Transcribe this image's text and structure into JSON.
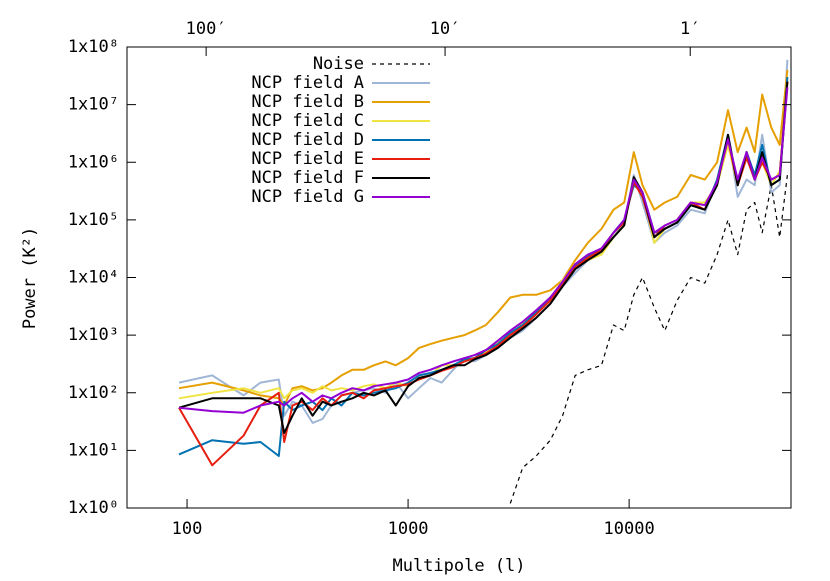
{
  "chart_data": {
    "type": "line",
    "xlabel": "Multipole (l)",
    "ylabel": "Power (K²)",
    "xscale": "log",
    "yscale": "log",
    "xlim": [
      53.5,
      54000
    ],
    "ylim": [
      1,
      100000000
    ],
    "xticks": [
      100,
      1000,
      10000
    ],
    "x2ticks": [
      {
        "value": 122,
        "label": "100′"
      },
      {
        "value": 1470,
        "label": "10′"
      },
      {
        "value": 18900,
        "label": "1′"
      }
    ],
    "yticks": [
      {
        "value": 1,
        "label": "1x10⁰"
      },
      {
        "value": 10,
        "label": "1x10¹"
      },
      {
        "value": 100,
        "label": "1x10²"
      },
      {
        "value": 1000,
        "label": "1x10³"
      },
      {
        "value": 10000,
        "label": "1x10⁴"
      },
      {
        "value": 100000,
        "label": "1x10⁵"
      },
      {
        "value": 1000000,
        "label": "1x10⁶"
      },
      {
        "value": 10000000,
        "label": "1x10⁷"
      },
      {
        "value": 100000000,
        "label": "1x10⁸"
      }
    ],
    "legend": "top-left",
    "x": [
      92,
      130,
      180,
      215,
      260,
      275,
      300,
      330,
      370,
      410,
      450,
      500,
      560,
      630,
      700,
      790,
      880,
      1000,
      1120,
      1260,
      1420,
      1600,
      1800,
      2000,
      2250,
      2550,
      2900,
      3300,
      3800,
      4400,
      5000,
      5700,
      6500,
      7500,
      8500,
      9500,
      10500,
      11500,
      13000,
      14500,
      16500,
      19000,
      22000,
      25000,
      28000,
      31000,
      34000,
      37000,
      40000,
      44000,
      48000,
      52000
    ],
    "series": [
      {
        "name": "Noise",
        "color": "#000000",
        "line_style": "dashed",
        "values": [
          null,
          null,
          null,
          null,
          null,
          null,
          null,
          null,
          null,
          null,
          null,
          null,
          null,
          null,
          null,
          null,
          null,
          null,
          null,
          null,
          null,
          null,
          null,
          null,
          null,
          null,
          1.2,
          5,
          8,
          15,
          40,
          200,
          250,
          300,
          1500,
          1200,
          5000,
          10000,
          3000,
          1200,
          4000,
          10000,
          8000,
          25000,
          100000,
          25000,
          150000,
          200000,
          60000,
          400000,
          50000,
          600000
        ]
      },
      {
        "name": "NCP field A",
        "color": "#a0b6d6",
        "line_style": "solid",
        "values": [
          150,
          200,
          90,
          150,
          170,
          40,
          70,
          60,
          30,
          35,
          60,
          90,
          100,
          110,
          120,
          100,
          150,
          80,
          120,
          180,
          150,
          250,
          400,
          350,
          450,
          700,
          900,
          1200,
          2000,
          3500,
          7000,
          12000,
          20000,
          30000,
          50000,
          90000,
          600000,
          200000,
          40000,
          60000,
          80000,
          150000,
          130000,
          500000,
          3000000,
          250000,
          500000,
          400000,
          3000000,
          300000,
          400000,
          60000000
        ]
      },
      {
        "name": "NCP field B",
        "color": "#e69f00",
        "line_style": "solid",
        "values": [
          120,
          150,
          110,
          90,
          80,
          60,
          120,
          130,
          110,
          120,
          150,
          200,
          250,
          250,
          300,
          350,
          300,
          400,
          600,
          700,
          800,
          900,
          1000,
          1200,
          1500,
          2500,
          4500,
          5000,
          5000,
          6000,
          9000,
          20000,
          40000,
          70000,
          150000,
          200000,
          1500000,
          400000,
          150000,
          200000,
          250000,
          600000,
          500000,
          1000000,
          8000000,
          1500000,
          4000000,
          1500000,
          15000000,
          4000000,
          2000000,
          40000000
        ]
      },
      {
        "name": "NCP field C",
        "color": "#f0e442",
        "line_style": "solid",
        "values": [
          80,
          100,
          120,
          100,
          120,
          80,
          110,
          120,
          100,
          130,
          110,
          120,
          110,
          130,
          140,
          120,
          150,
          130,
          180,
          200,
          300,
          300,
          350,
          400,
          500,
          750,
          1000,
          1600,
          2600,
          4000,
          9000,
          15000,
          20000,
          25000,
          50000,
          80000,
          500000,
          300000,
          40000,
          70000,
          90000,
          200000,
          200000,
          400000,
          2000000,
          400000,
          1200000,
          500000,
          1000000,
          400000,
          700000,
          20000000
        ]
      },
      {
        "name": "NCP field D",
        "color": "#0072b2",
        "line_style": "solid",
        "values": [
          8.5,
          15,
          13,
          14,
          8,
          70,
          50,
          60,
          70,
          50,
          80,
          60,
          100,
          90,
          100,
          110,
          120,
          150,
          200,
          220,
          250,
          300,
          380,
          400,
          550,
          700,
          1100,
          1500,
          2500,
          4500,
          8000,
          16000,
          24000,
          30000,
          60000,
          100000,
          400000,
          300000,
          60000,
          70000,
          90000,
          180000,
          150000,
          500000,
          3000000,
          400000,
          1500000,
          600000,
          2000000,
          400000,
          500000,
          30000000
        ]
      },
      {
        "name": "NCP field E",
        "color": "#e51e10",
        "line_style": "solid",
        "values": [
          55,
          5.5,
          18,
          60,
          100,
          14,
          60,
          70,
          50,
          80,
          60,
          90,
          100,
          80,
          110,
          120,
          130,
          140,
          170,
          200,
          240,
          280,
          350,
          400,
          480,
          650,
          1000,
          1400,
          2300,
          4000,
          7500,
          15000,
          22000,
          30000,
          60000,
          90000,
          450000,
          250000,
          50000,
          80000,
          100000,
          200000,
          150000,
          450000,
          2500000,
          400000,
          1200000,
          500000,
          1000000,
          500000,
          600000,
          25000000
        ]
      },
      {
        "name": "NCP field F",
        "color": "#000000",
        "line_style": "solid",
        "values": [
          55,
          80,
          80,
          80,
          60,
          20,
          40,
          80,
          40,
          70,
          60,
          70,
          80,
          100,
          90,
          110,
          60,
          130,
          180,
          200,
          250,
          300,
          300,
          380,
          450,
          600,
          900,
          1300,
          2000,
          3500,
          7000,
          14000,
          20000,
          28000,
          50000,
          80000,
          550000,
          300000,
          50000,
          70000,
          90000,
          180000,
          150000,
          400000,
          3000000,
          400000,
          1500000,
          500000,
          1500000,
          400000,
          500000,
          25000000
        ]
      },
      {
        "name": "NCP field G",
        "color": "#9400d3",
        "line_style": "solid",
        "values": [
          55,
          48,
          45,
          60,
          70,
          60,
          80,
          100,
          70,
          90,
          80,
          100,
          120,
          110,
          130,
          140,
          150,
          170,
          220,
          250,
          300,
          350,
          400,
          450,
          550,
          800,
          1200,
          1700,
          2700,
          4500,
          8500,
          17000,
          25000,
          32000,
          60000,
          100000,
          500000,
          300000,
          60000,
          80000,
          100000,
          200000,
          180000,
          450000,
          2500000,
          500000,
          1500000,
          500000,
          1200000,
          500000,
          600000,
          20000000
        ]
      }
    ]
  }
}
